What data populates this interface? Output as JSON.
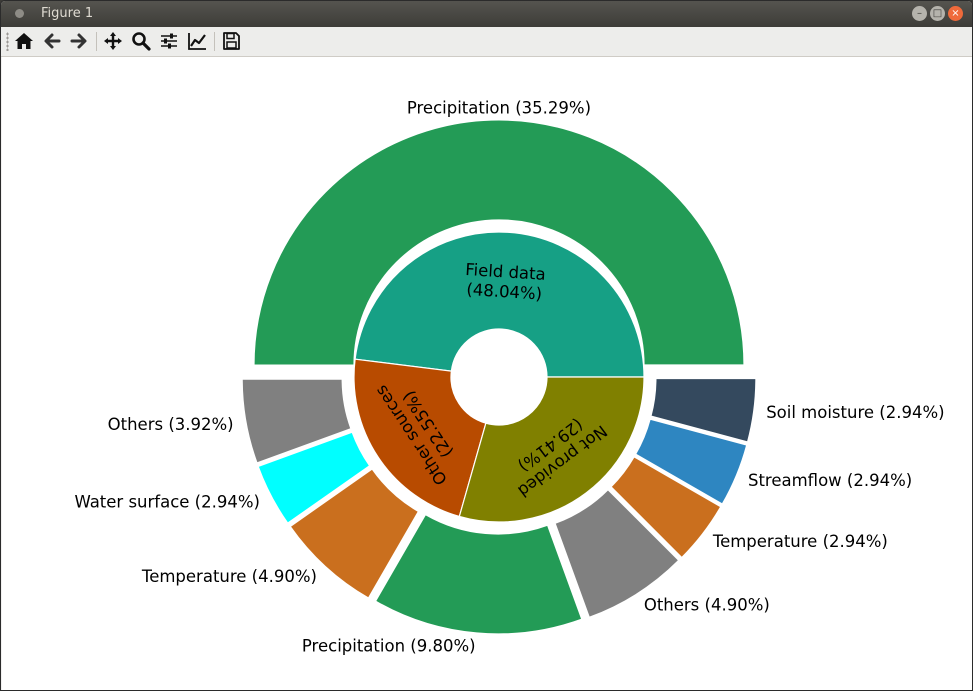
{
  "window": {
    "title": "Figure 1"
  },
  "toolbar": {
    "buttons": [
      {
        "name": "home-button",
        "icon": "home-icon"
      },
      {
        "name": "back-button",
        "icon": "arrow-left-icon"
      },
      {
        "name": "forward-button",
        "icon": "arrow-right-icon"
      },
      {
        "name": "pan-button",
        "icon": "move-icon"
      },
      {
        "name": "zoom-button",
        "icon": "magnifier-icon"
      },
      {
        "name": "subplots-button",
        "icon": "sliders-icon"
      },
      {
        "name": "customize-button",
        "icon": "line-chart-icon"
      },
      {
        "name": "save-button",
        "icon": "floppy-disk-icon"
      }
    ]
  },
  "chart_data": {
    "type": "pie",
    "subtype": "nested-donut",
    "title": "",
    "inner": [
      {
        "label": "Field data",
        "pct": "48.04%",
        "value": 48.04,
        "color": "#16a085"
      },
      {
        "label": "Other sources",
        "pct": "22.55%",
        "value": 22.55,
        "color": "#b84b00"
      },
      {
        "label": "Not provided",
        "pct": "29.41%",
        "value": 29.41,
        "color": "#808000"
      }
    ],
    "outer": [
      {
        "label": "Precipitation",
        "pct": "35.29%",
        "value": 35.29,
        "color": "#239b56",
        "parent": 0
      },
      {
        "label": "Others",
        "pct": "3.92%",
        "value": 3.92,
        "color": "#808080",
        "parent": 0
      },
      {
        "label": "Water surface",
        "pct": "2.94%",
        "value": 2.94,
        "color": "#00ffff",
        "parent": 1
      },
      {
        "label": "Temperature",
        "pct": "4.90%",
        "value": 4.9,
        "color": "#ca6f1e",
        "parent": 1
      },
      {
        "label": "Precipitation",
        "pct": "9.80%",
        "value": 9.8,
        "color": "#239b56",
        "parent": 1
      },
      {
        "label": "Others",
        "pct": "4.90%",
        "value": 4.9,
        "color": "#808080",
        "parent": 1
      },
      {
        "label": "Temperature",
        "pct": "2.94%",
        "value": 2.94,
        "color": "#ca6f1e",
        "parent": 0
      },
      {
        "label": "Streamflow",
        "pct": "2.94%",
        "value": 2.94,
        "color": "#2e86c1",
        "parent": 0
      },
      {
        "label": "Soil moisture",
        "pct": "2.94%",
        "value": 2.94,
        "color": "#34495e",
        "parent": 0
      }
    ]
  }
}
